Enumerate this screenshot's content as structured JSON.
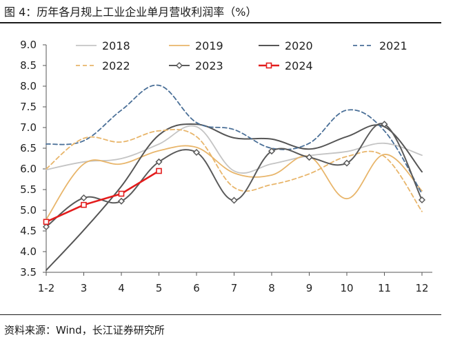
{
  "figure": {
    "title": "图 4：历年各月规上工业企业单月营收利润率（%）",
    "source": "资料来源：Wind，长江证券研究所"
  },
  "chart_data": {
    "type": "line",
    "title": "",
    "xlabel": "",
    "ylabel": "",
    "categories": [
      "1-2",
      "3",
      "4",
      "5",
      "6",
      "7",
      "8",
      "9",
      "10",
      "11",
      "12"
    ],
    "ylim": [
      3.5,
      9.0
    ],
    "yticks": [
      "3.5",
      "4.0",
      "4.5",
      "5.0",
      "5.5",
      "6.0",
      "6.5",
      "7.0",
      "7.5",
      "8.0",
      "8.5",
      "9.0"
    ],
    "grid": false,
    "legend": "top",
    "series": [
      {
        "name": "2018",
        "color": "#c4c4c4",
        "dash": "solid",
        "marker": "none",
        "values": [
          5.98,
          6.17,
          6.25,
          6.6,
          7.02,
          5.95,
          6.12,
          6.32,
          6.42,
          6.62,
          6.33
        ]
      },
      {
        "name": "2019",
        "color": "#e8b56a",
        "dash": "solid",
        "marker": "none",
        "values": [
          4.78,
          6.12,
          6.12,
          6.44,
          6.52,
          5.9,
          5.85,
          6.3,
          5.28,
          6.35,
          5.47
        ]
      },
      {
        "name": "2020",
        "color": "#555555",
        "dash": "solid",
        "marker": "none",
        "values": [
          3.55,
          4.52,
          5.58,
          6.82,
          7.08,
          6.75,
          6.72,
          6.48,
          6.78,
          7.02,
          5.93
        ]
      },
      {
        "name": "2021",
        "color": "#4a6f97",
        "dash": "dashed",
        "marker": "none",
        "values": [
          6.6,
          6.68,
          7.42,
          8.02,
          7.12,
          6.95,
          6.5,
          6.62,
          7.42,
          6.92,
          5.4
        ]
      },
      {
        "name": "2022",
        "color": "#e8b56a",
        "dash": "dashed",
        "marker": "none",
        "values": [
          6.0,
          6.74,
          6.65,
          6.92,
          6.78,
          5.55,
          5.62,
          5.88,
          6.3,
          6.3,
          4.97
        ]
      },
      {
        "name": "2023",
        "color": "#5a5a5a",
        "dash": "solid",
        "marker": "diamond",
        "values": [
          4.6,
          5.3,
          5.22,
          6.17,
          6.4,
          5.24,
          6.43,
          6.28,
          6.14,
          7.08,
          5.25
        ]
      },
      {
        "name": "2024",
        "color": "#e31c1c",
        "dash": "solid",
        "marker": "square",
        "values": [
          4.72,
          5.13,
          5.4,
          5.95,
          null,
          null,
          null,
          null,
          null,
          null,
          null
        ]
      }
    ]
  }
}
